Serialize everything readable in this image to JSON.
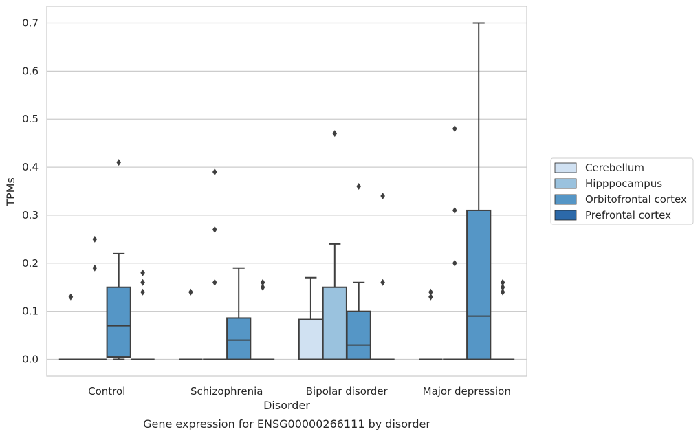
{
  "chart_data": {
    "type": "box",
    "title": "",
    "caption": "Gene expression for ENSG00000266111 by disorder",
    "xlabel": "Disorder",
    "ylabel": "TPMs",
    "categories": [
      "Control",
      "Schizophrenia",
      "Bipolar disorder",
      "Major depression"
    ],
    "ylim": [
      -0.035,
      0.735
    ],
    "yticks": [
      "0.0",
      "0.1",
      "0.2",
      "0.3",
      "0.4",
      "0.5",
      "0.6",
      "0.7"
    ],
    "grid": "horizontal",
    "legend_position": "right",
    "series": [
      {
        "name": "Cerebellum",
        "color": "#d0e1f2",
        "boxes": [
          {
            "q1": 0,
            "median": 0,
            "q3": 0,
            "whisker_low": 0,
            "whisker_high": 0,
            "outliers": [
              0.13
            ]
          },
          {
            "q1": 0,
            "median": 0,
            "q3": 0,
            "whisker_low": 0,
            "whisker_high": 0,
            "outliers": [
              0.14
            ]
          },
          {
            "q1": 0,
            "median": 0,
            "q3": 0.083,
            "whisker_low": 0,
            "whisker_high": 0.17,
            "outliers": []
          },
          {
            "q1": 0,
            "median": 0,
            "q3": 0,
            "whisker_low": 0,
            "whisker_high": 0,
            "outliers": [
              0.13,
              0.14
            ]
          }
        ]
      },
      {
        "name": "Hipppocampus",
        "color": "#9ac2de",
        "boxes": [
          {
            "q1": 0,
            "median": 0,
            "q3": 0,
            "whisker_low": 0,
            "whisker_high": 0,
            "outliers": [
              0.19,
              0.25
            ]
          },
          {
            "q1": 0,
            "median": 0,
            "q3": 0,
            "whisker_low": 0,
            "whisker_high": 0,
            "outliers": [
              0.16,
              0.27,
              0.39
            ]
          },
          {
            "q1": 0,
            "median": 0,
            "q3": 0.15,
            "whisker_low": 0,
            "whisker_high": 0.24,
            "outliers": [
              0.47
            ]
          },
          {
            "q1": 0,
            "median": 0,
            "q3": 0,
            "whisker_low": 0,
            "whisker_high": 0,
            "outliers": [
              0.2,
              0.31,
              0.48
            ]
          }
        ]
      },
      {
        "name": "Orbitofrontal cortex",
        "color": "#5596c6",
        "boxes": [
          {
            "q1": 0.005,
            "median": 0.07,
            "q3": 0.15,
            "whisker_low": 0,
            "whisker_high": 0.22,
            "outliers": [
              0.41
            ]
          },
          {
            "q1": 0,
            "median": 0.04,
            "q3": 0.086,
            "whisker_low": 0,
            "whisker_high": 0.19,
            "outliers": []
          },
          {
            "q1": 0,
            "median": 0.03,
            "q3": 0.1,
            "whisker_low": 0,
            "whisker_high": 0.16,
            "outliers": [
              0.36
            ]
          },
          {
            "q1": 0,
            "median": 0.09,
            "q3": 0.31,
            "whisker_low": 0,
            "whisker_high": 0.7,
            "outliers": []
          }
        ]
      },
      {
        "name": "Prefrontal cortex",
        "color": "#2c69a9",
        "boxes": [
          {
            "q1": 0,
            "median": 0,
            "q3": 0,
            "whisker_low": 0,
            "whisker_high": 0,
            "outliers": [
              0.14,
              0.16,
              0.18
            ]
          },
          {
            "q1": 0,
            "median": 0,
            "q3": 0,
            "whisker_low": 0,
            "whisker_high": 0,
            "outliers": [
              0.15,
              0.16
            ]
          },
          {
            "q1": 0,
            "median": 0,
            "q3": 0,
            "whisker_low": 0,
            "whisker_high": 0,
            "outliers": [
              0.16,
              0.34
            ]
          },
          {
            "q1": 0,
            "median": 0,
            "q3": 0,
            "whisker_low": 0,
            "whisker_high": 0,
            "outliers": [
              0.14,
              0.15,
              0.16
            ]
          }
        ]
      }
    ]
  }
}
